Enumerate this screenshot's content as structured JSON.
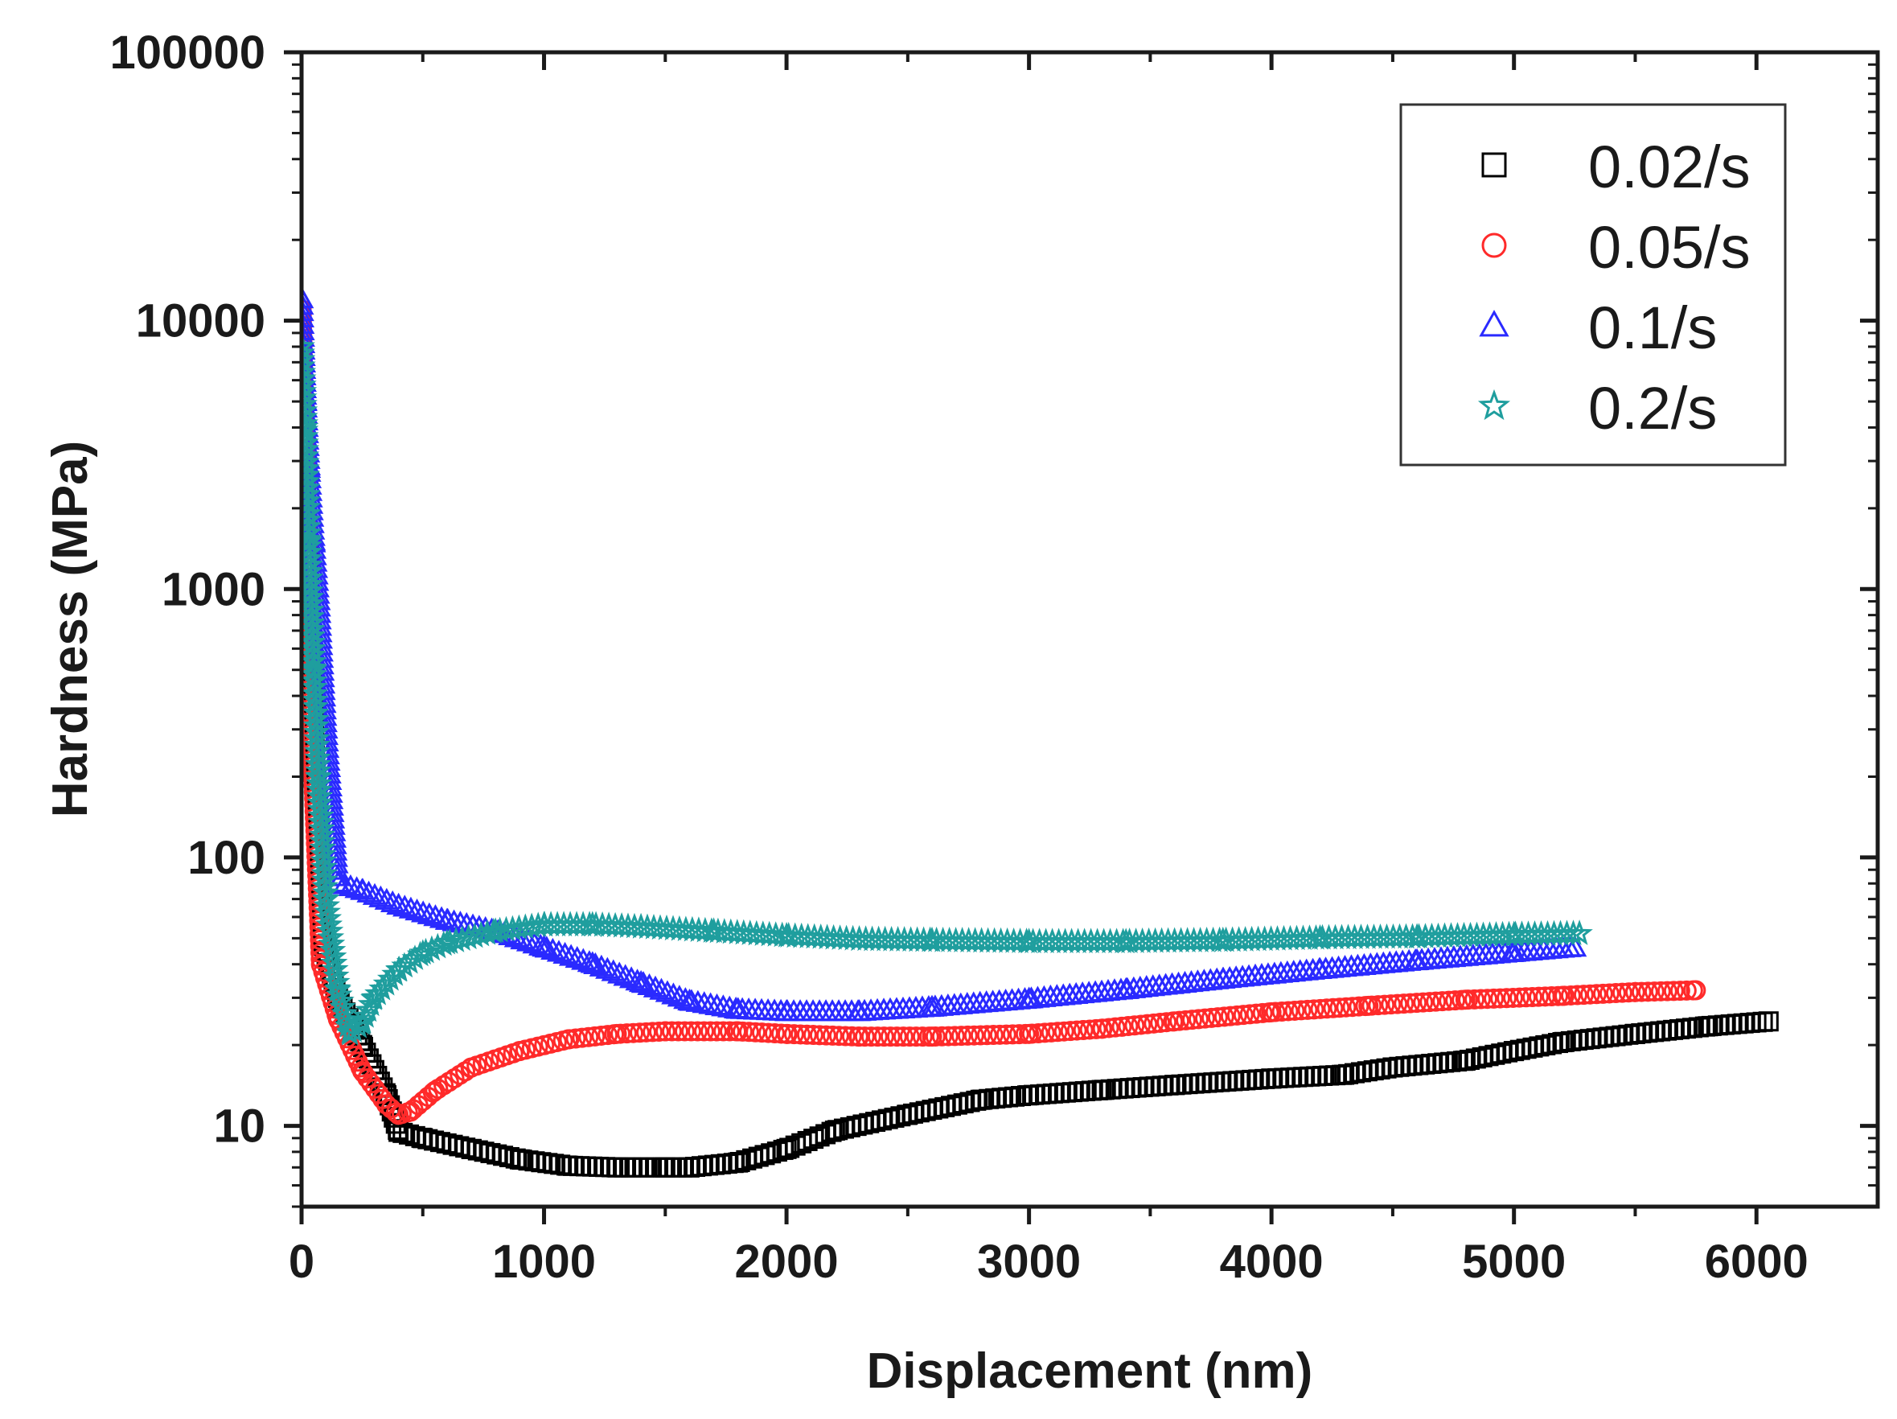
{
  "chart_data": {
    "type": "scatter",
    "title": "",
    "xlabel": "Displacement (nm)",
    "ylabel": "Hardness (MPa)",
    "xlim": [
      0,
      6500
    ],
    "ylim": [
      5,
      100000
    ],
    "yscale": "log",
    "xticks": [
      0,
      1000,
      2000,
      3000,
      4000,
      5000,
      6000
    ],
    "xtick_labels": [
      "0",
      "1000",
      "2000",
      "3000",
      "4000",
      "5000",
      "6000"
    ],
    "yticks": [
      10,
      100,
      1000,
      10000,
      100000
    ],
    "ytick_labels": [
      "10",
      "100",
      "1000",
      "10000",
      "100000"
    ],
    "grid": false,
    "legend_position": "top-right",
    "series": [
      {
        "name": "0.02/s",
        "color": "#000000",
        "marker": "square",
        "x": [
          0,
          20,
          40,
          80,
          150,
          250,
          350,
          400,
          500,
          700,
          900,
          1100,
          1300,
          1500,
          1600,
          1800,
          2000,
          2200,
          2500,
          2800,
          3000,
          3300,
          3600,
          4000,
          4300,
          4500,
          4800,
          5000,
          5200,
          5500,
          5800,
          6050
        ],
        "y": [
          7500,
          2000,
          600,
          50,
          30,
          20,
          13,
          9.5,
          9,
          8.2,
          7.5,
          7.1,
          7,
          7,
          7,
          7.3,
          8.2,
          9.6,
          11,
          12.5,
          13,
          13.6,
          14.2,
          15,
          15.5,
          16.5,
          17.5,
          19,
          20.5,
          22,
          23.5,
          24.5
        ]
      },
      {
        "name": "0.05/s",
        "color": "#ff2a2a",
        "marker": "circle",
        "x": [
          0,
          20,
          40,
          80,
          150,
          250,
          350,
          400,
          450,
          550,
          700,
          900,
          1100,
          1300,
          1500,
          1800,
          2000,
          2300,
          2600,
          3000,
          3300,
          3600,
          4000,
          4400,
          4800,
          5200,
          5500,
          5750
        ],
        "y": [
          11000,
          2000,
          300,
          40,
          25,
          16,
          12,
          11,
          11.3,
          13.5,
          16.5,
          19,
          21,
          22,
          22.5,
          22.5,
          22,
          21.5,
          21.5,
          22,
          23,
          24.5,
          26.5,
          28,
          29.5,
          30.5,
          31.5,
          32
        ]
      },
      {
        "name": "0.1/s",
        "color": "#2a2aff",
        "marker": "triangle",
        "x": [
          0,
          15,
          30,
          50,
          70,
          100,
          150,
          250,
          400,
          600,
          800,
          1000,
          1200,
          1400,
          1600,
          1800,
          2000,
          2300,
          2600,
          3000,
          3400,
          3800,
          4200,
          4600,
          5000,
          5250
        ],
        "y": [
          12000,
          5000,
          2800,
          1500,
          900,
          300,
          80,
          75,
          66,
          58,
          53,
          46,
          40,
          34,
          29,
          27,
          26.5,
          26.5,
          27.5,
          29.5,
          32,
          35,
          38,
          41,
          44,
          46
        ]
      },
      {
        "name": "0.2/s",
        "color": "#1f9e9e",
        "marker": "star",
        "x": [
          0,
          15,
          30,
          50,
          70,
          100,
          150,
          200,
          250,
          300,
          400,
          500,
          600,
          800,
          1000,
          1200,
          1400,
          1700,
          2000,
          2300,
          2600,
          3000,
          3400,
          3800,
          4200,
          4600,
          5000,
          5270
        ],
        "y": [
          8000,
          4000,
          1500,
          500,
          200,
          70,
          32,
          22,
          24,
          30,
          38,
          44,
          48,
          53,
          56,
          56,
          55,
          53,
          51,
          49.5,
          49,
          48.5,
          48.5,
          49,
          50,
          50.5,
          51.5,
          52
        ]
      }
    ]
  }
}
